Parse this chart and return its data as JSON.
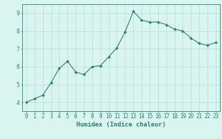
{
  "x": [
    0,
    1,
    2,
    3,
    4,
    5,
    6,
    7,
    8,
    9,
    10,
    11,
    12,
    13,
    14,
    15,
    16,
    17,
    18,
    19,
    20,
    21,
    22,
    23
  ],
  "y": [
    4.0,
    4.2,
    4.4,
    5.1,
    5.9,
    6.3,
    5.7,
    5.55,
    6.0,
    6.05,
    6.55,
    7.05,
    7.95,
    9.1,
    8.6,
    8.5,
    8.5,
    8.35,
    8.1,
    8.0,
    7.6,
    7.3,
    7.2,
    7.35
  ],
  "line_color": "#2e7d6e",
  "marker": "D",
  "marker_size": 2.0,
  "bg_color": "#d8f5f0",
  "grid_color": "#b8dad4",
  "xlabel": "Humidex (Indice chaleur)",
  "xlim": [
    -0.5,
    23.5
  ],
  "ylim": [
    3.5,
    9.5
  ],
  "yticks": [
    4,
    5,
    6,
    7,
    8,
    9
  ],
  "xticks": [
    0,
    1,
    2,
    3,
    4,
    5,
    6,
    7,
    8,
    9,
    10,
    11,
    12,
    13,
    14,
    15,
    16,
    17,
    18,
    19,
    20,
    21,
    22,
    23
  ],
  "tick_color": "#2e7d6e",
  "label_color": "#2e7d6e",
  "font_size": 5.5,
  "xlabel_size": 6.5
}
